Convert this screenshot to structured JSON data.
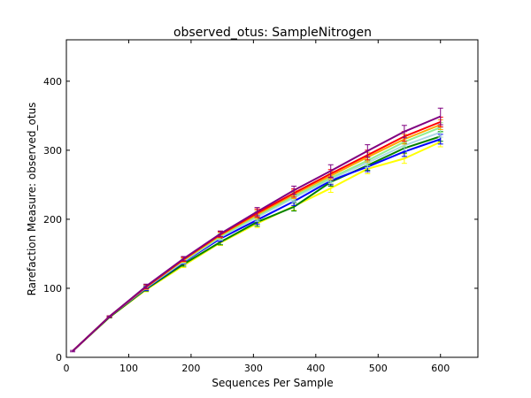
{
  "chart_data": {
    "type": "line",
    "title": "observed_otus: SampleNitrogen",
    "xlabel": "Sequences Per Sample",
    "ylabel": "Rarefaction Measure: observed_otus",
    "xlim": [
      0,
      660
    ],
    "ylim": [
      0,
      460
    ],
    "xticks": [
      0,
      100,
      200,
      300,
      400,
      500,
      600
    ],
    "yticks": [
      0,
      100,
      200,
      300,
      400
    ],
    "grid": false,
    "legend": "none",
    "x": [
      10,
      69,
      128,
      188,
      247,
      306,
      365,
      424,
      483,
      542,
      600
    ],
    "series": [
      {
        "color": "#ffff00",
        "values": [
          9,
          58,
          98,
          133,
          166,
          194,
          219,
          245,
          273,
          288,
          312
        ],
        "errors": [
          0,
          1,
          3,
          3,
          4,
          6,
          6,
          6,
          7,
          7,
          7
        ]
      },
      {
        "color": "#008000",
        "values": [
          9,
          58,
          99,
          135,
          167,
          196,
          218,
          254,
          278,
          303,
          320
        ],
        "errors": [
          0,
          1,
          3,
          3,
          4,
          6,
          6,
          6,
          7,
          7,
          7
        ]
      },
      {
        "color": "#0000ff",
        "values": [
          9,
          59,
          100,
          138,
          172,
          199,
          226,
          256,
          276,
          298,
          316
        ],
        "errors": [
          0,
          1,
          3,
          3,
          4,
          6,
          6,
          6,
          7,
          7,
          7
        ]
      },
      {
        "color": "#add8e6",
        "values": [
          9,
          59,
          101,
          139,
          174,
          203,
          231,
          258,
          282,
          307,
          326
        ],
        "errors": [
          0,
          1,
          3,
          3,
          4,
          6,
          6,
          6,
          7,
          7,
          7
        ]
      },
      {
        "color": "#90ee90",
        "values": [
          9,
          59,
          101,
          140,
          175,
          205,
          233,
          260,
          285,
          312,
          333
        ],
        "errors": [
          0,
          1,
          3,
          3,
          4,
          6,
          6,
          6,
          7,
          7,
          7
        ]
      },
      {
        "color": "#ffa500",
        "values": [
          9,
          59,
          102,
          141,
          177,
          207,
          236,
          263,
          290,
          316,
          337
        ],
        "errors": [
          0,
          1,
          3,
          3,
          4,
          6,
          6,
          6,
          7,
          7,
          7
        ]
      },
      {
        "color": "#ff0000",
        "values": [
          9,
          59,
          102,
          142,
          178,
          209,
          238,
          266,
          293,
          320,
          341
        ],
        "errors": [
          0,
          1,
          3,
          3,
          4,
          6,
          6,
          6,
          7,
          7,
          7
        ]
      },
      {
        "color": "#800080",
        "values": [
          9,
          59,
          103,
          143,
          179,
          211,
          242,
          270,
          299,
          327,
          349
        ],
        "errors": [
          1,
          1,
          3,
          3,
          4,
          6,
          6,
          9,
          9,
          9,
          12
        ]
      }
    ]
  }
}
